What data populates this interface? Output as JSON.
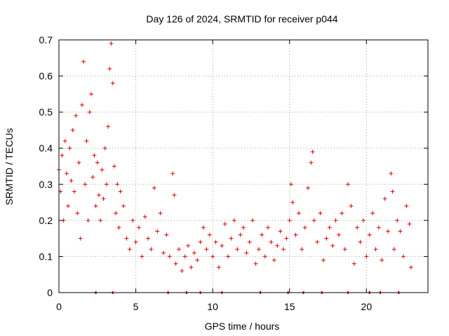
{
  "chart_data": {
    "type": "scatter",
    "title": "Day 126 of 2024, SRMTID for receiver p044",
    "xlabel": "GPS time / hours",
    "ylabel": "SRMTID / TECUs",
    "xlim": [
      0,
      24
    ],
    "ylim": [
      0,
      0.7
    ],
    "x_ticks": [
      0,
      5,
      10,
      15,
      20
    ],
    "x_tick_labels": [
      "0",
      "5",
      "10",
      "15",
      "20"
    ],
    "y_ticks": [
      0,
      0.1,
      0.2,
      0.3,
      0.4,
      0.5,
      0.6,
      0.7
    ],
    "y_tick_labels": [
      "0",
      "0.1",
      "0.2",
      "0.3",
      "0.4",
      "0.5",
      "0.6",
      "0.7"
    ],
    "grid": true,
    "marker": "+",
    "color": "#e00000",
    "series": [
      {
        "name": "SRMTID",
        "points": [
          [
            0.0,
            0.34
          ],
          [
            0.1,
            0.28
          ],
          [
            0.2,
            0.38
          ],
          [
            0.3,
            0.2
          ],
          [
            0.4,
            0.42
          ],
          [
            0.5,
            0.33
          ],
          [
            0.6,
            0.24
          ],
          [
            0.7,
            0.4
          ],
          [
            0.8,
            0.31
          ],
          [
            0.9,
            0.45
          ],
          [
            1.0,
            0.28
          ],
          [
            1.1,
            0.49
          ],
          [
            1.2,
            0.22
          ],
          [
            1.3,
            0.36
          ],
          [
            1.4,
            0.15
          ],
          [
            1.5,
            0.52
          ],
          [
            1.6,
            0.64
          ],
          [
            1.7,
            0.3
          ],
          [
            1.8,
            0.42
          ],
          [
            1.9,
            0.2
          ],
          [
            2.0,
            0.5
          ],
          [
            2.1,
            0.55
          ],
          [
            2.2,
            0.32
          ],
          [
            2.3,
            0.38
          ],
          [
            2.4,
            0.24
          ],
          [
            2.5,
            0.36
          ],
          [
            2.6,
            0.27
          ],
          [
            2.7,
            0.2
          ],
          [
            2.8,
            0.34
          ],
          [
            2.9,
            0.26
          ],
          [
            3.0,
            0.4
          ],
          [
            3.1,
            0.3
          ],
          [
            3.2,
            0.46
          ],
          [
            3.3,
            0.62
          ],
          [
            3.4,
            0.69
          ],
          [
            3.5,
            0.58
          ],
          [
            3.6,
            0.35
          ],
          [
            3.7,
            0.22
          ],
          [
            3.8,
            0.3
          ],
          [
            3.9,
            0.18
          ],
          [
            4.0,
            0.28
          ],
          [
            4.2,
            0.24
          ],
          [
            4.4,
            0.15
          ],
          [
            4.6,
            0.12
          ],
          [
            4.8,
            0.2
          ],
          [
            5.0,
            0.14
          ],
          [
            5.2,
            0.18
          ],
          [
            5.4,
            0.1
          ],
          [
            5.6,
            0.21
          ],
          [
            5.8,
            0.15
          ],
          [
            6.0,
            0.12
          ],
          [
            6.2,
            0.29
          ],
          [
            6.4,
            0.17
          ],
          [
            6.6,
            0.22
          ],
          [
            6.8,
            0.11
          ],
          [
            7.0,
            0.16
          ],
          [
            7.2,
            0.1
          ],
          [
            7.4,
            0.33
          ],
          [
            7.5,
            0.27
          ],
          [
            7.6,
            0.08
          ],
          [
            7.8,
            0.12
          ],
          [
            8.0,
            0.06
          ],
          [
            8.2,
            0.1
          ],
          [
            8.4,
            0.13
          ],
          [
            8.6,
            0.07
          ],
          [
            8.8,
            0.11
          ],
          [
            9.0,
            0.09
          ],
          [
            9.2,
            0.14
          ],
          [
            9.4,
            0.18
          ],
          [
            9.6,
            0.12
          ],
          [
            9.8,
            0.16
          ],
          [
            10.0,
            0.1
          ],
          [
            10.2,
            0.14
          ],
          [
            10.4,
            0.07
          ],
          [
            10.6,
            0.13
          ],
          [
            10.8,
            0.19
          ],
          [
            11.0,
            0.1
          ],
          [
            11.2,
            0.15
          ],
          [
            11.4,
            0.2
          ],
          [
            11.6,
            0.12
          ],
          [
            11.8,
            0.16
          ],
          [
            12.0,
            0.18
          ],
          [
            12.2,
            0.11
          ],
          [
            12.4,
            0.14
          ],
          [
            12.6,
            0.2
          ],
          [
            12.8,
            0.08
          ],
          [
            13.0,
            0.12
          ],
          [
            13.2,
            0.16
          ],
          [
            13.4,
            0.1
          ],
          [
            13.6,
            0.18
          ],
          [
            13.8,
            0.14
          ],
          [
            14.0,
            0.09
          ],
          [
            14.2,
            0.13
          ],
          [
            14.4,
            0.17
          ],
          [
            14.6,
            0.12
          ],
          [
            14.8,
            0.15
          ],
          [
            15.0,
            0.2
          ],
          [
            15.1,
            0.3
          ],
          [
            15.2,
            0.25
          ],
          [
            15.4,
            0.16
          ],
          [
            15.6,
            0.22
          ],
          [
            15.8,
            0.12
          ],
          [
            16.0,
            0.18
          ],
          [
            16.2,
            0.29
          ],
          [
            16.4,
            0.36
          ],
          [
            16.5,
            0.39
          ],
          [
            16.6,
            0.2
          ],
          [
            16.8,
            0.14
          ],
          [
            17.0,
            0.22
          ],
          [
            17.2,
            0.09
          ],
          [
            17.4,
            0.15
          ],
          [
            17.6,
            0.18
          ],
          [
            17.8,
            0.13
          ],
          [
            18.0,
            0.2
          ],
          [
            18.2,
            0.16
          ],
          [
            18.4,
            0.22
          ],
          [
            18.6,
            0.12
          ],
          [
            18.8,
            0.3
          ],
          [
            19.0,
            0.24
          ],
          [
            19.2,
            0.08
          ],
          [
            19.4,
            0.18
          ],
          [
            19.6,
            0.14
          ],
          [
            19.8,
            0.2
          ],
          [
            20.0,
            0.1
          ],
          [
            20.2,
            0.16
          ],
          [
            20.4,
            0.22
          ],
          [
            20.6,
            0.12
          ],
          [
            20.8,
            0.18
          ],
          [
            21.0,
            0.09
          ],
          [
            21.2,
            0.26
          ],
          [
            21.4,
            0.17
          ],
          [
            21.6,
            0.33
          ],
          [
            21.7,
            0.28
          ],
          [
            21.8,
            0.12
          ],
          [
            22.0,
            0.2
          ],
          [
            22.2,
            0.17
          ],
          [
            22.4,
            0.1
          ],
          [
            22.6,
            0.24
          ],
          [
            22.8,
            0.19
          ],
          [
            22.9,
            0.07
          ]
        ]
      }
    ],
    "x_axis_markers": [
      2.4,
      3.5,
      7.1,
      8.3,
      9.2,
      10.6,
      13.1,
      14.9,
      15.9,
      17.1,
      18.8,
      20.2,
      20.9,
      22.1
    ]
  }
}
